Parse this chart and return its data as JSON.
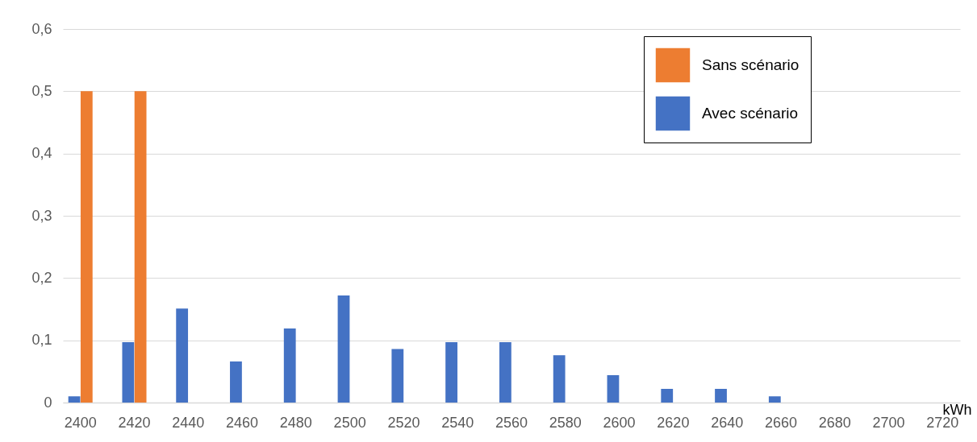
{
  "chart_data": {
    "type": "bar",
    "xlabel": "kWh",
    "categories": [
      "2400",
      "2420",
      "2440",
      "2460",
      "2480",
      "2500",
      "2520",
      "2540",
      "2560",
      "2580",
      "2600",
      "2620",
      "2640",
      "2660",
      "2680",
      "2700",
      "2720"
    ],
    "series": [
      {
        "name": "Avec scénario",
        "color": "#4472c4",
        "values": [
          0.01,
          0.097,
          0.151,
          0.066,
          0.119,
          0.172,
          0.086,
          0.097,
          0.097,
          0.076,
          0.044,
          0.022,
          0.022,
          0.01,
          0,
          0,
          0
        ]
      },
      {
        "name": "Sans scénario",
        "color": "#ed7d31",
        "values": [
          0.5,
          0.5,
          0,
          0,
          0,
          0,
          0,
          0,
          0,
          0,
          0,
          0,
          0,
          0,
          0,
          0,
          0
        ]
      }
    ],
    "ylim": [
      0,
      0.6
    ],
    "yticks": [
      0,
      {
        "value": 0.1,
        "label": "0,1"
      },
      {
        "value": 0.2,
        "label": "0,2"
      },
      {
        "value": 0.3,
        "label": "0,3"
      },
      {
        "value": 0.4,
        "label": "0,4"
      },
      {
        "value": 0.5,
        "label": "0,5"
      },
      {
        "value": 0.6,
        "label": "0,6"
      }
    ],
    "grid": "y",
    "legend": "top right"
  }
}
